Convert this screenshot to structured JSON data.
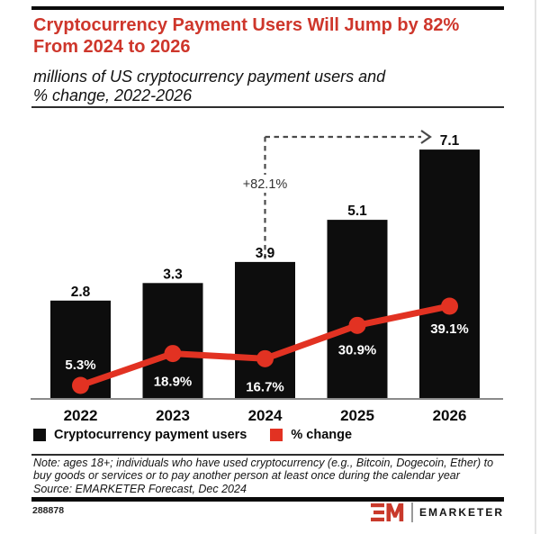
{
  "header": {
    "title_line1": "Cryptocurrency Payment Users Will Jump by 82%",
    "title_line2": "From 2024 to 2026",
    "subtitle_line1": "millions of US cryptocurrency payment users and",
    "subtitle_line2": "% change, 2022-2026"
  },
  "chart_data": {
    "type": "bar",
    "categories": [
      "2022",
      "2023",
      "2024",
      "2025",
      "2026"
    ],
    "series": [
      {
        "name": "Cryptocurrency payment users",
        "type": "bar",
        "color": "#0d0d0d",
        "values": [
          2.8,
          3.3,
          3.9,
          5.1,
          7.1
        ],
        "labels": [
          "2.8",
          "3.3",
          "3.9",
          "5.1",
          "7.1"
        ]
      },
      {
        "name": "% change",
        "type": "line",
        "color": "#E23222",
        "values": [
          5.3,
          18.9,
          16.7,
          30.9,
          39.1
        ],
        "labels": [
          "5.3%",
          "18.9%",
          "16.7%",
          "30.9%",
          "39.1%"
        ]
      }
    ],
    "annotation": {
      "label": "+82.1%",
      "from_category": "2024",
      "to_category": "2026"
    },
    "legend": [
      {
        "label": "Cryptocurrency payment users",
        "color": "#0d0d0d"
      },
      {
        "label": "% change",
        "color": "#E23222"
      }
    ],
    "xlabel": "",
    "ylabel": "",
    "grid": false,
    "legend_position": "bottom"
  },
  "footer": {
    "note_line1": "Note: ages 18+; individuals who have used cryptocurrency (e.g., Bitcoin, Dogecoin, Ether) to",
    "note_line2": "buy goods or services or to pay another person at least once during the calendar year",
    "source": "Source: EMARKETER Forecast, Dec 2024",
    "chart_id": "288878",
    "brand": "EMARKETER"
  },
  "colors": {
    "title_red": "#CE362B",
    "line_red": "#E23222",
    "bar_black": "#0d0d0d"
  }
}
